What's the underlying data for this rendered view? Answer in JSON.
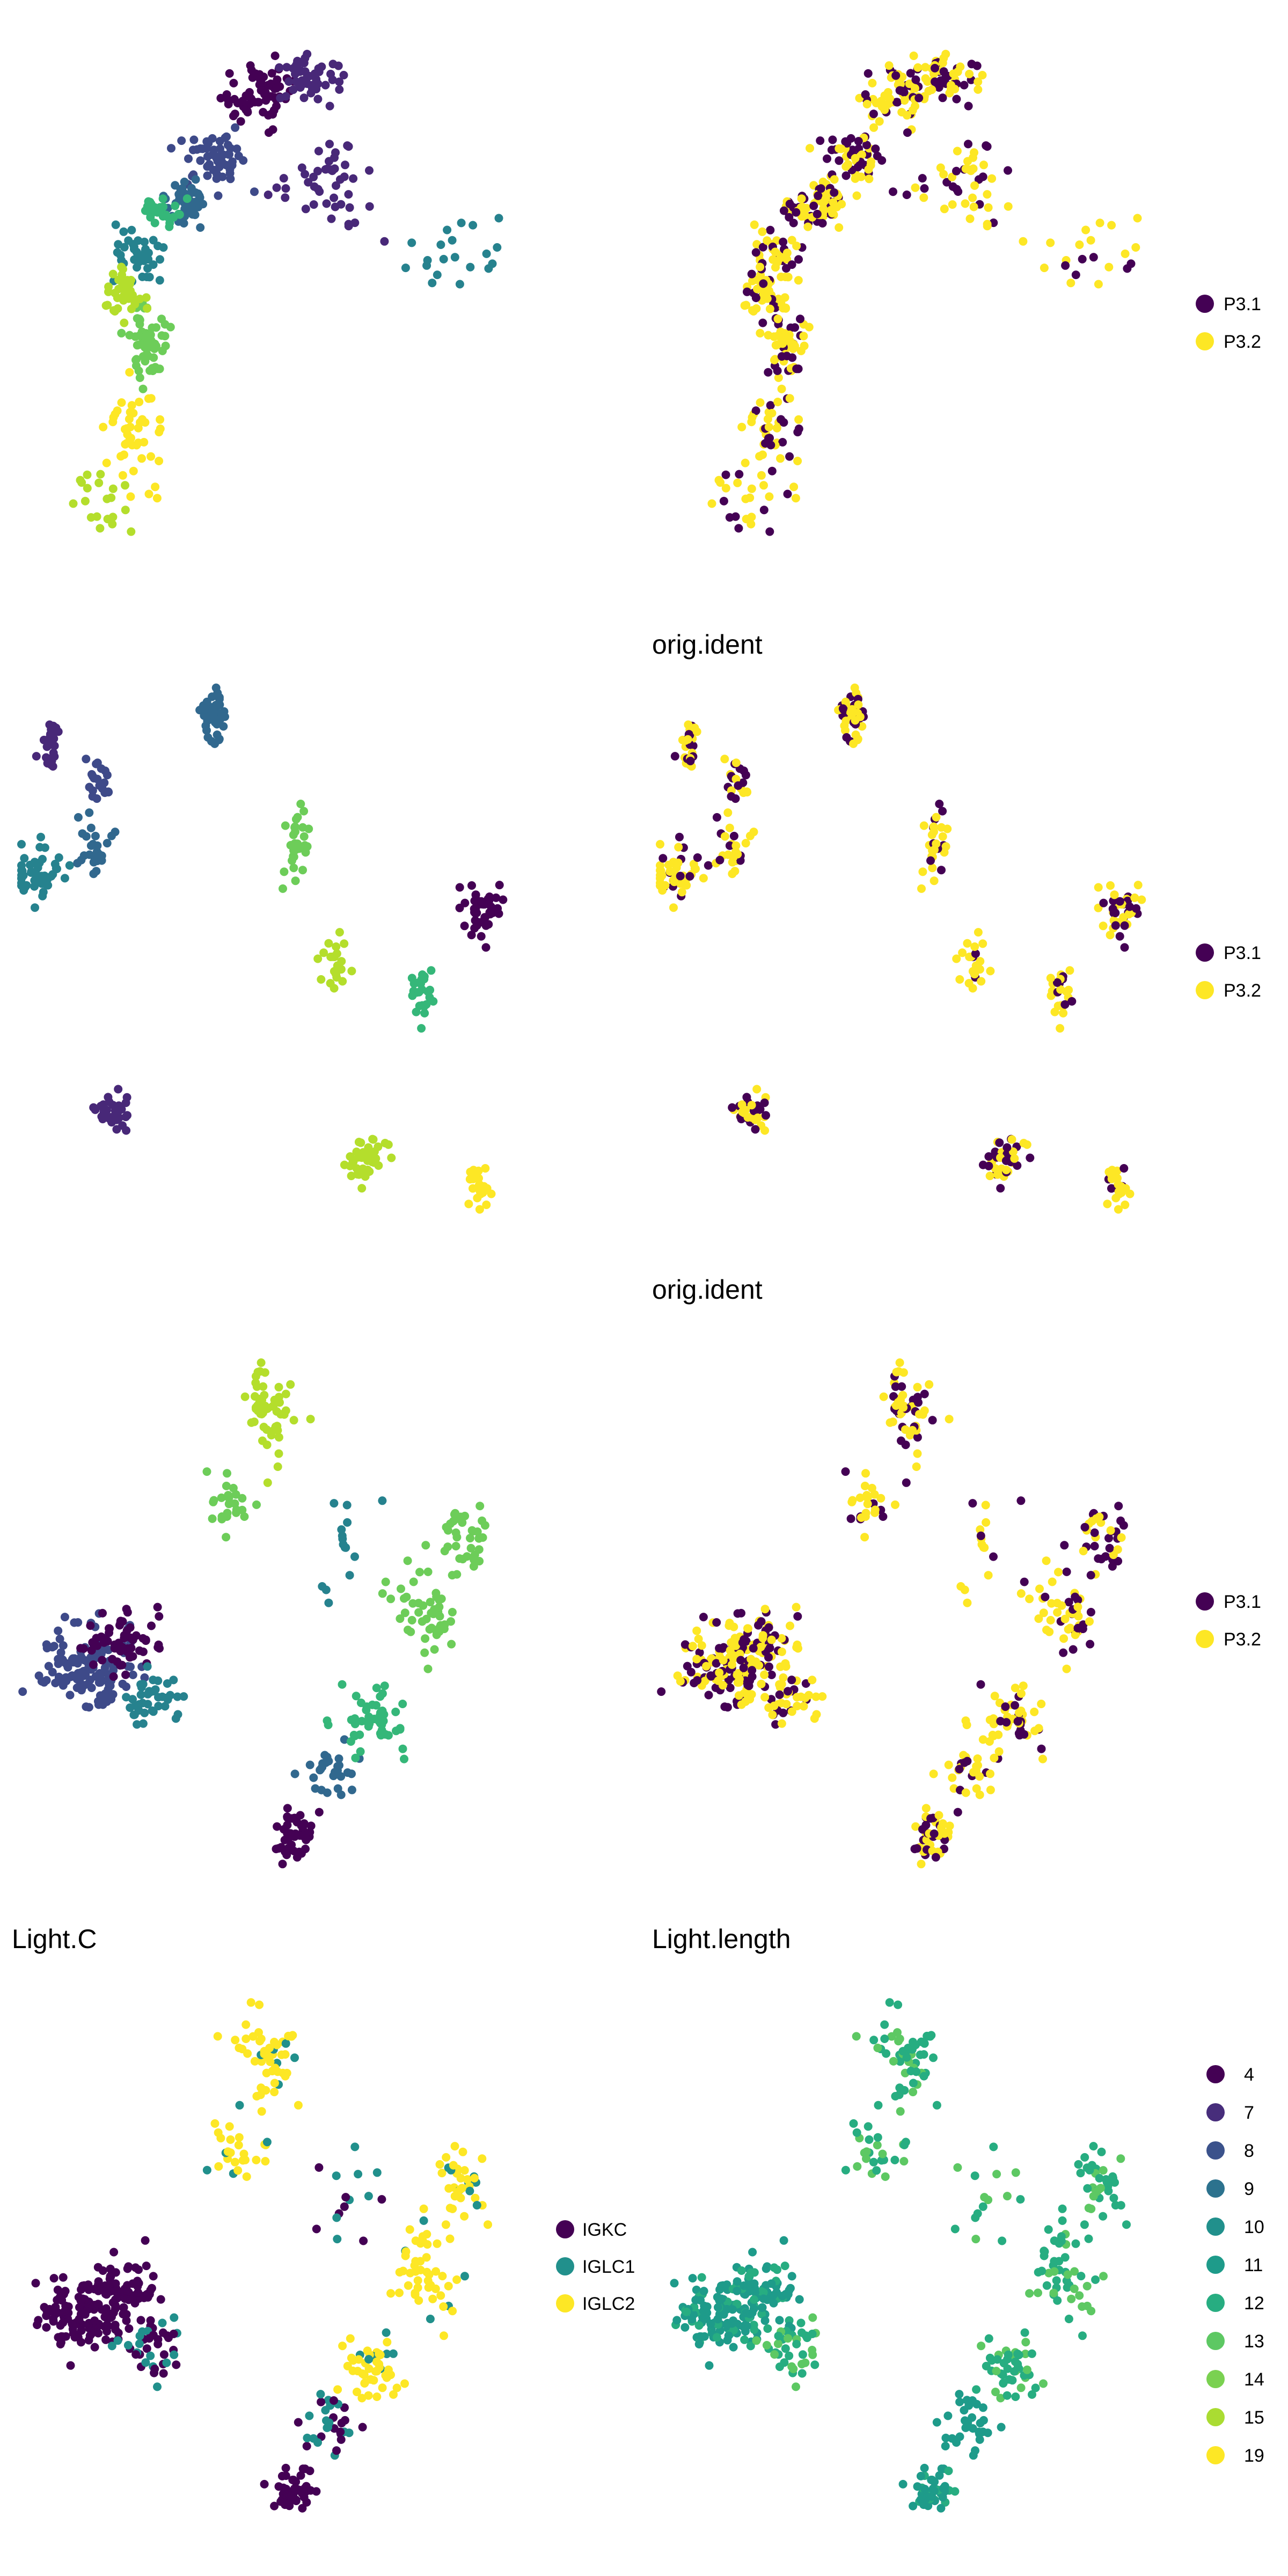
{
  "palette": {
    "viridis": [
      "#440154",
      "#482878",
      "#3E4A89",
      "#31688E",
      "#26828E",
      "#1F9E89",
      "#35B779",
      "#6DCD59",
      "#B4DE2C",
      "#FDE725"
    ],
    "sample": {
      "P3.1": "#440154",
      "P3.2": "#FDE725"
    },
    "light_c": {
      "IGKC": "#440154",
      "IGLC1": "#21908C",
      "IGLC2": "#FDE725"
    }
  },
  "chart_data": [
    {
      "type": "scatter",
      "title": "",
      "xlabel": "",
      "ylabel": "",
      "grid": false,
      "color_by": "cluster",
      "legend": null,
      "shape": "arc"
    },
    {
      "type": "scatter",
      "title": "",
      "xlabel": "",
      "ylabel": "",
      "grid": false,
      "color_by": "sample",
      "shape": "arc",
      "legend": {
        "placement": "right",
        "entries": [
          "P3.1",
          "P3.2"
        ]
      }
    },
    {
      "type": "scatter",
      "title": "",
      "xlabel": "",
      "ylabel": "",
      "grid": false,
      "color_by": "cluster",
      "legend": null,
      "shape": "islands"
    },
    {
      "type": "scatter",
      "title": "orig.ident",
      "xlabel": "",
      "ylabel": "",
      "grid": false,
      "color_by": "sample",
      "shape": "islands",
      "legend": {
        "placement": "right",
        "entries": [
          "P3.1",
          "P3.2"
        ]
      }
    },
    {
      "type": "scatter",
      "title": "",
      "xlabel": "",
      "ylabel": "",
      "grid": false,
      "color_by": "cluster",
      "legend": null,
      "shape": "branches"
    },
    {
      "type": "scatter",
      "title": "orig.ident",
      "xlabel": "",
      "ylabel": "",
      "grid": false,
      "color_by": "sample",
      "shape": "branches",
      "legend": {
        "placement": "right",
        "entries": [
          "P3.1",
          "P3.2"
        ]
      }
    },
    {
      "type": "scatter",
      "title": "Light.C",
      "xlabel": "",
      "ylabel": "",
      "grid": false,
      "color_by": "light_c",
      "shape": "branches",
      "legend": {
        "placement": "right",
        "entries": [
          "IGKC",
          "IGLC1",
          "IGLC2"
        ]
      }
    },
    {
      "type": "scatter",
      "title": "Light.length",
      "xlabel": "",
      "ylabel": "",
      "grid": false,
      "color_by": "light_length",
      "shape": "branches",
      "legend": {
        "placement": "right",
        "entries": [
          "4",
          "7",
          "8",
          "9",
          "10",
          "11",
          "12",
          "13",
          "14",
          "15",
          "19"
        ]
      },
      "legend_colors": [
        "#440154",
        "#472D7B",
        "#3B528B",
        "#2C728E",
        "#21908C",
        "#1E9B8A",
        "#27AD81",
        "#5DC863",
        "#7AD151",
        "#AADC32",
        "#FDE725"
      ]
    }
  ]
}
